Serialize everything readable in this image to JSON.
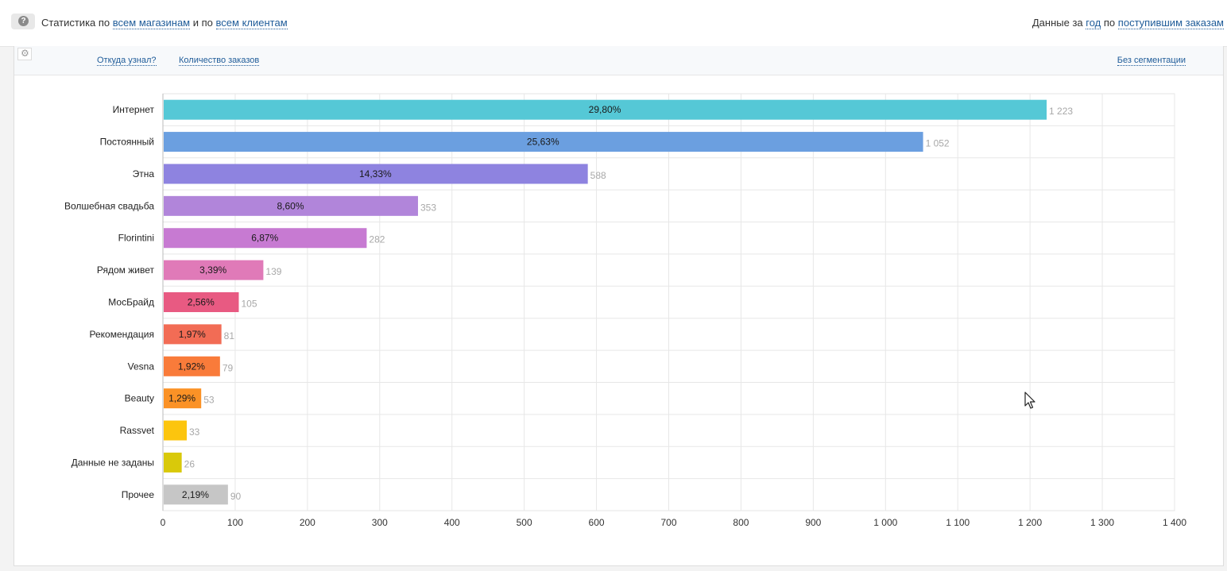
{
  "header": {
    "help_label": "?",
    "stat_prefix": "Статистика по",
    "stores_link": "всем магазинам",
    "stat_mid": "и по",
    "clients_link": "всем клиентам",
    "data_prefix": "Данные за",
    "period_link": "год",
    "data_mid": "по",
    "orders_link": "поступившим заказам"
  },
  "toolbar": {
    "source_link": "Откуда узнал?",
    "metric_link": "Количество заказов",
    "segmentation_link": "Без сегментации"
  },
  "chart_data": {
    "type": "bar",
    "orientation": "horizontal",
    "categories": [
      "Интернет",
      "Постоянный",
      "Этна",
      "Волшебная свадьба",
      "Florintini",
      "Рядом живет",
      "МосБрайд",
      "Рекомендация",
      "Vesna",
      "Beauty",
      "Rassvet",
      "Данные не заданы",
      "Прочее"
    ],
    "values": [
      1223,
      1052,
      588,
      353,
      282,
      139,
      105,
      81,
      79,
      53,
      33,
      26,
      90
    ],
    "value_labels": [
      "1 223",
      "1 052",
      "588",
      "353",
      "282",
      "139",
      "105",
      "81",
      "79",
      "53",
      "33",
      "26",
      "90"
    ],
    "percent_labels": [
      "29,80%",
      "25,63%",
      "14,33%",
      "8,60%",
      "6,87%",
      "3,39%",
      "2,56%",
      "1,97%",
      "1,92%",
      "1,29%",
      "",
      "",
      "2,19%"
    ],
    "colors": [
      "#55c8d6",
      "#6b9fe0",
      "#8e83e0",
      "#b185da",
      "#c77ad2",
      "#e07ab8",
      "#e85a82",
      "#f26c55",
      "#f97b3a",
      "#fb9226",
      "#fcc50e",
      "#d9c90a",
      "#c6c6c6"
    ],
    "x_ticks": [
      "0",
      "100",
      "200",
      "300",
      "400",
      "500",
      "600",
      "700",
      "800",
      "900",
      "1 000",
      "1 100",
      "1 200",
      "1 300",
      "1 400"
    ],
    "xlim": [
      0,
      1400
    ],
    "grid": true
  }
}
